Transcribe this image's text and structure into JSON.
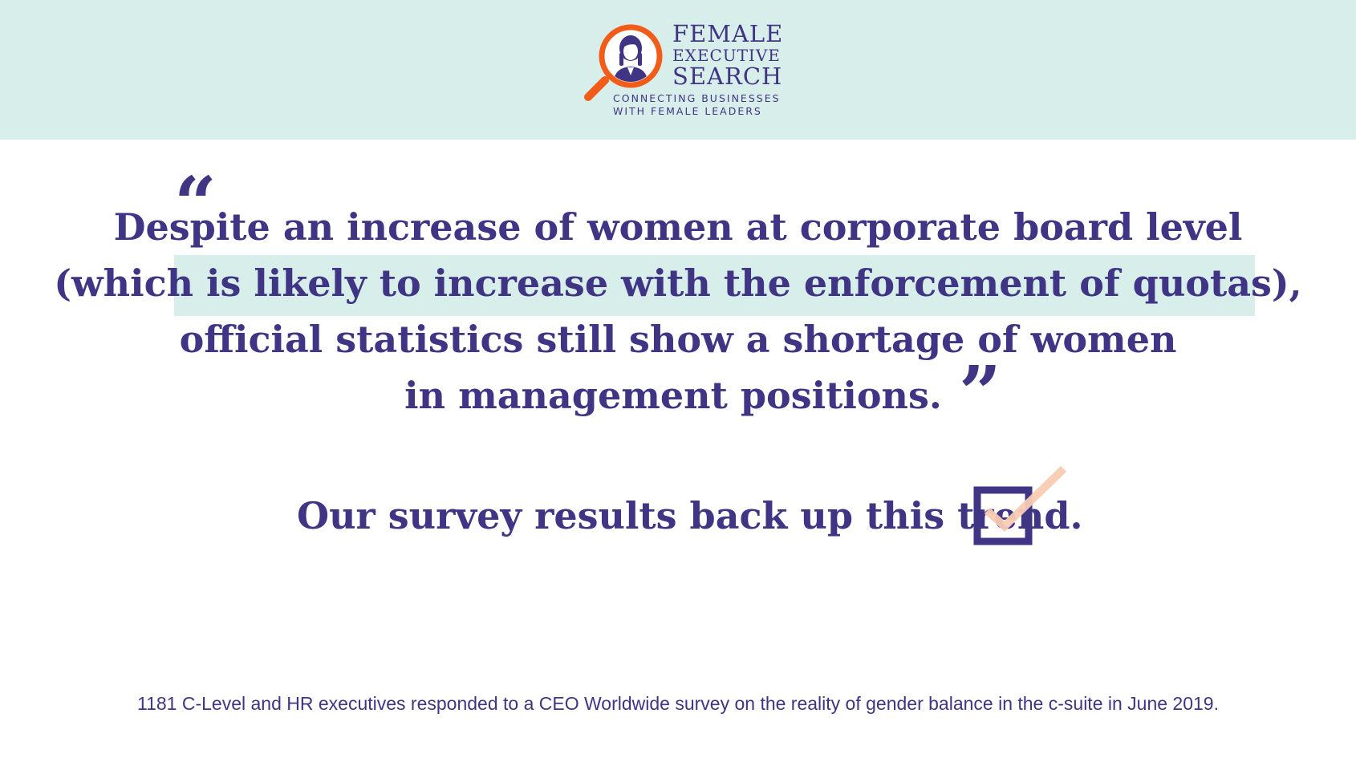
{
  "colors": {
    "brand_purple": "#3f3584",
    "brand_orange": "#f25c19",
    "header_bg": "#d8eeea",
    "check_peach": "#f9cbb3"
  },
  "logo": {
    "icon": "magnifier-woman-icon",
    "line1": "FEMALE",
    "line2": "EXECUTIVE",
    "line3": "SEARCH",
    "tagline1": "CONNECTING BUSINESSES",
    "tagline2": "WITH FEMALE LEADERS"
  },
  "quote": {
    "open_mark": "“",
    "close_mark": "”",
    "line1": "Despite an increase of women at corporate board level",
    "line2": "(which is likely to increase with the enforcement of quotas),",
    "line3": "official statistics still show a shortage of women",
    "line4": "in management positions."
  },
  "survey": {
    "text": "Our survey results back up this trend.",
    "icon": "checkbox-checked-icon"
  },
  "footnote": "1181 C-Level and HR executives responded to a CEO Worldwide survey on the reality of gender balance in the c-suite in June 2019."
}
